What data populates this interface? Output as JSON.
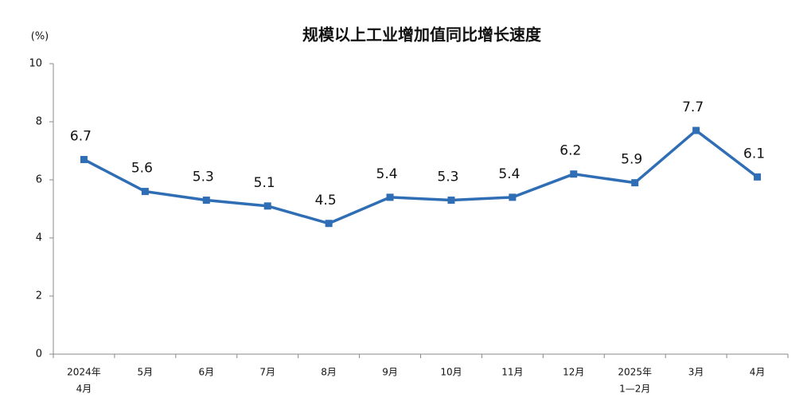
{
  "chart_data": {
    "type": "line",
    "title": "规模以上工业增加值同比增长速度",
    "y_unit": "(%)",
    "categories": [
      [
        "2024年",
        "4月"
      ],
      [
        "5月"
      ],
      [
        "6月"
      ],
      [
        "7月"
      ],
      [
        "8月"
      ],
      [
        "9月"
      ],
      [
        "10月"
      ],
      [
        "11月"
      ],
      [
        "12月"
      ],
      [
        "2025年",
        "1—2月"
      ],
      [
        "3月"
      ],
      [
        "4月"
      ]
    ],
    "series": [
      {
        "name": "规模以上工业增加值同比增长速度",
        "color": "#2f6eb5",
        "values": [
          6.7,
          5.6,
          5.3,
          5.1,
          4.5,
          5.4,
          5.3,
          5.4,
          6.2,
          5.9,
          7.7,
          6.1
        ]
      }
    ],
    "ylim": [
      0,
      10
    ],
    "yticks": [
      0,
      2,
      4,
      6,
      8,
      10
    ],
    "grid": false
  }
}
